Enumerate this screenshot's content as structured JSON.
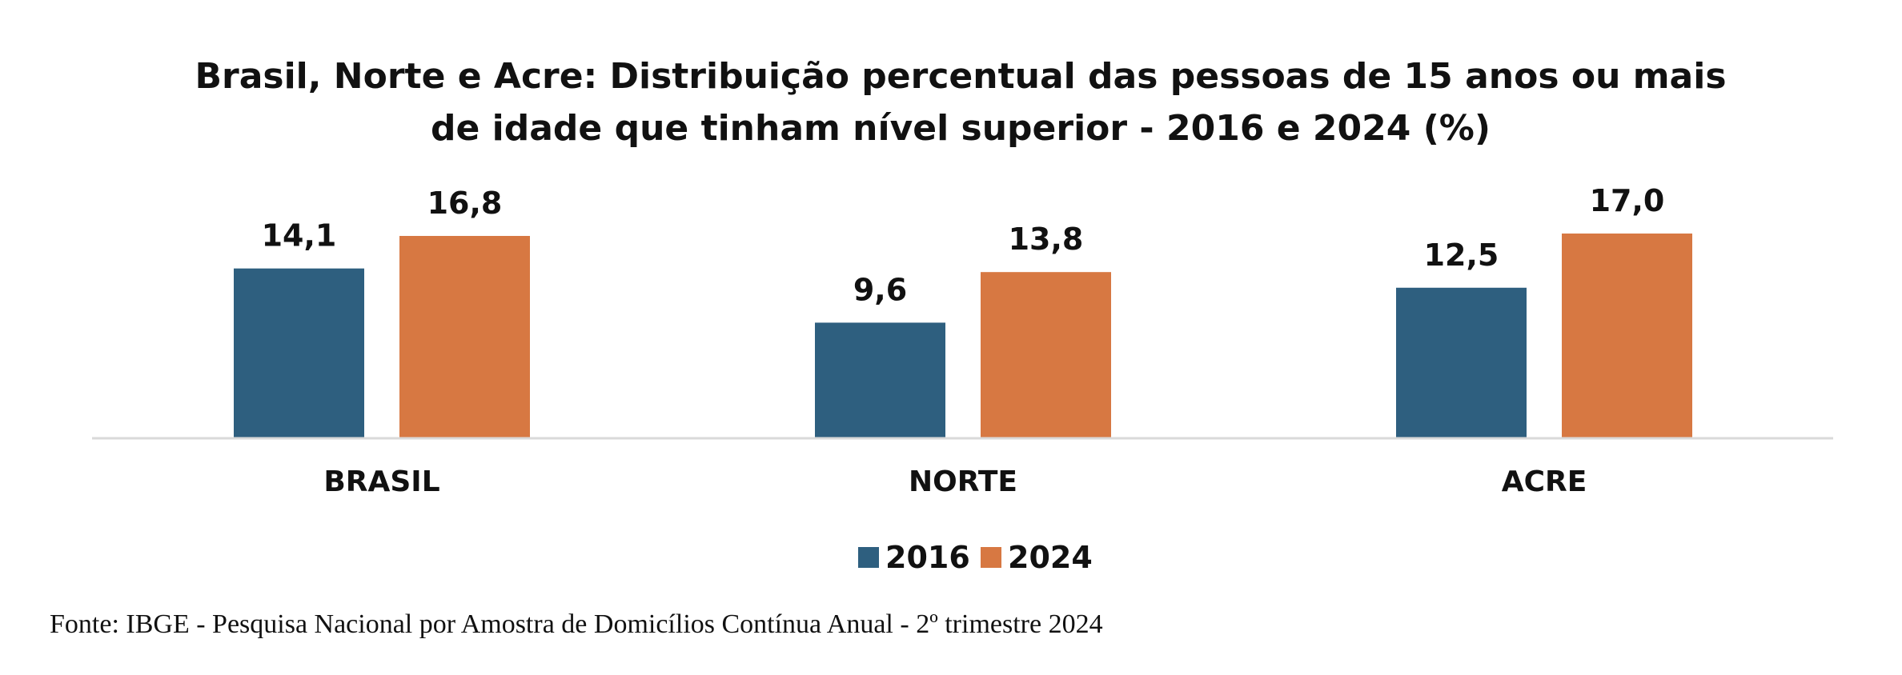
{
  "chart_data": {
    "type": "bar",
    "title_lines": [
      "Brasil, Norte e Acre:  Distribuição percentual das pessoas de 15 anos ou mais",
      "de idade que tinham nível superior - 2016 e 2024 (%)"
    ],
    "categories": [
      "BRASIL",
      "NORTE",
      "ACRE"
    ],
    "series": [
      {
        "name": "2016",
        "color": "#2e5f7f",
        "values": [
          14.1,
          9.6,
          12.5
        ],
        "labels": [
          "14,1",
          "9,6",
          "12,5"
        ]
      },
      {
        "name": "2024",
        "color": "#d77842",
        "values": [
          16.8,
          13.8,
          17.0
        ],
        "labels": [
          "16,8",
          "13,8",
          "17,0"
        ]
      }
    ],
    "ylim": [
      0,
      17
    ],
    "grid": false,
    "legend_position": "bottom-center",
    "axis_line_color": "#d9d9d9"
  },
  "source": "Fonte: IBGE - Pesquisa Nacional por Amostra de Domicílios Contínua Anual - 2º trimestre 2024"
}
